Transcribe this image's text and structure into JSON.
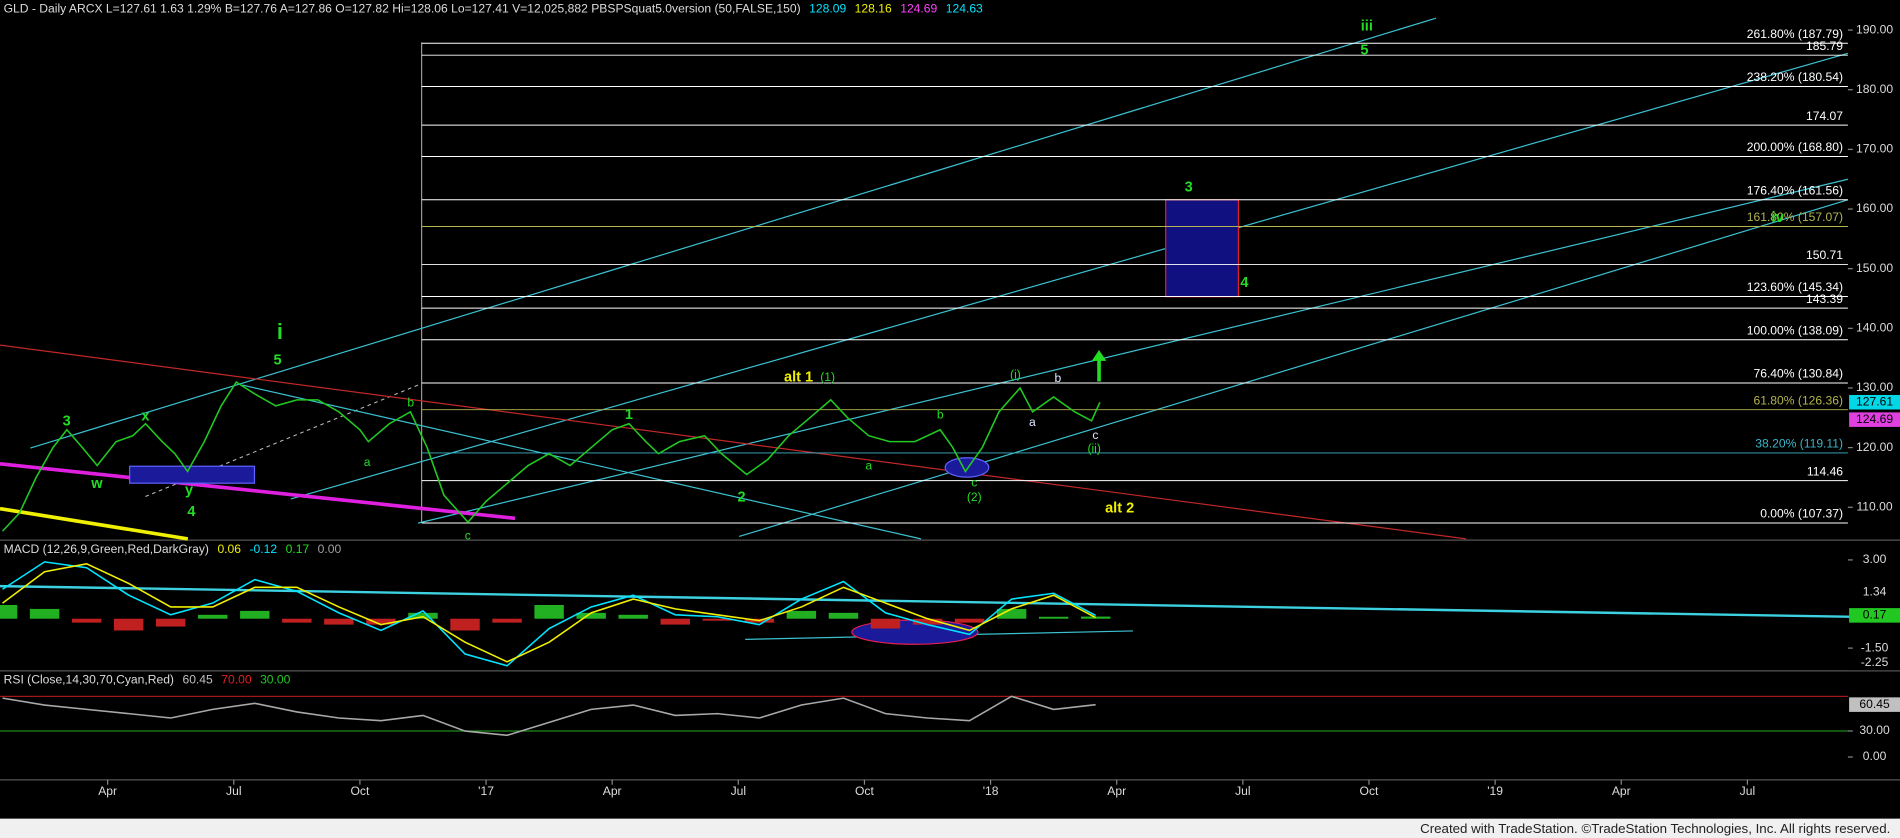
{
  "header": {
    "title": "GLD - Daily ARCX L=127.61 1.63 1.29% B=127.76 A=127.86 O=127.82 Hi=128.06 Lo=127.41 V=12,025,882 PBSPSquat5.0version (50,FALSE,150)",
    "values": [
      {
        "text": "128.09",
        "color": "#00e5ff"
      },
      {
        "text": "128.16",
        "color": "#f0f000"
      },
      {
        "text": "124.69",
        "color": "#ff40ff"
      },
      {
        "text": "124.63",
        "color": "#00e5ff"
      }
    ]
  },
  "chart_data": [
    {
      "type": "line",
      "x": [
        0.5,
        0.9,
        1.3,
        1.7,
        2.03,
        2.4,
        2.75,
        3.2,
        3.6,
        3.9,
        4.3,
        4.6,
        4.9,
        5.3,
        5.7,
        6.06,
        6.5,
        7.0,
        7.5,
        8.0,
        8.5,
        9.0,
        9.2,
        9.7,
        10.2,
        10.6,
        11.0,
        11.57,
        12.0,
        12.5,
        13.0,
        13.5,
        14.0,
        14.5,
        15.0,
        15.4,
        15.8,
        16.1,
        16.6,
        17.2,
        17.6,
        18.2,
        18.7,
        19.2,
        19.7,
        20.2,
        20.6,
        21.1,
        21.6,
        22.2,
        22.8,
        23.1,
        23.4,
        23.8,
        24.2,
        24.7,
        25.0,
        25.5,
        26.0,
        26.4,
        26.6
      ],
      "series": [
        {
          "color": "#22c822",
          "values": [
            106,
            109,
            115,
            120,
            123,
            120,
            117,
            121,
            122,
            124,
            121,
            119,
            116,
            121,
            127,
            131,
            129,
            127,
            128,
            128,
            126,
            123,
            121,
            124,
            126,
            120,
            112,
            107.5,
            111,
            114,
            117,
            119,
            117,
            120,
            123,
            124,
            121,
            119,
            121,
            122,
            119,
            115.5,
            118,
            122,
            125,
            128,
            125,
            122,
            121,
            121,
            123,
            120,
            116,
            120,
            126,
            130,
            126,
            128.5,
            126,
            124.5,
            127.61
          ]
        }
      ],
      "xlim": [
        0.44,
        44.39
      ],
      "xticks": [
        {
          "value": 3,
          "label": "Apr"
        },
        {
          "value": 6,
          "label": "Jul"
        },
        {
          "value": 9,
          "label": "Oct"
        },
        {
          "value": 12,
          "label": "'17"
        },
        {
          "value": 15,
          "label": "Apr"
        },
        {
          "value": 18,
          "label": "Jul"
        },
        {
          "value": 21,
          "label": "Oct"
        },
        {
          "value": 24,
          "label": "'18"
        },
        {
          "value": 27,
          "label": "Apr"
        },
        {
          "value": 30,
          "label": "Jul"
        },
        {
          "value": 33,
          "label": "Oct"
        },
        {
          "value": 36,
          "label": "'19"
        },
        {
          "value": 39,
          "label": "Apr"
        },
        {
          "value": 42,
          "label": "Jul"
        }
      ],
      "ylim": [
        104.7,
        192.2
      ],
      "yticks": [
        {
          "value": 110,
          "label": "110.00"
        },
        {
          "value": 120,
          "label": "120.00"
        },
        {
          "value": 130,
          "label": "130.00"
        },
        {
          "value": 140,
          "label": "140.00"
        },
        {
          "value": 150,
          "label": "150.00"
        },
        {
          "value": 160,
          "label": "160.00"
        },
        {
          "value": 170,
          "label": "170.00"
        },
        {
          "value": 180,
          "label": "180.00"
        },
        {
          "value": 190,
          "label": "190.00"
        }
      ],
      "levels": [
        {
          "label": "261.80% (187.79)",
          "value": 187.79,
          "color": "#ffffff"
        },
        {
          "label": "185.79",
          "value": 185.79,
          "color": "#ffffff"
        },
        {
          "label": "238.20% (180.54)",
          "value": 180.54,
          "color": "#ffffff"
        },
        {
          "label": "174.07",
          "value": 174.07,
          "color": "#ffffff"
        },
        {
          "label": "200.00% (168.80)",
          "value": 168.8,
          "color": "#ffffff"
        },
        {
          "label": "176.40% (161.56)",
          "value": 161.56,
          "color": "#ffffff"
        },
        {
          "label": "161.80% (157.07)",
          "value": 157.07,
          "color": "#b4b450"
        },
        {
          "label": "150.71",
          "value": 150.71,
          "color": "#ffffff"
        },
        {
          "label": "123.60% (145.34)",
          "value": 145.34,
          "color": "#ffffff"
        },
        {
          "label": "143.39",
          "value": 143.39,
          "color": "#ffffff"
        },
        {
          "label": "100.00% (138.09)",
          "value": 138.09,
          "color": "#ffffff"
        },
        {
          "label": "76.40% (130.84)",
          "value": 130.84,
          "color": "#ffffff"
        },
        {
          "label": "61.80% (126.36)",
          "value": 126.36,
          "color": "#b4b450"
        },
        {
          "label": "38.20% (119.11)",
          "value": 119.11,
          "color": "#3cb4c8"
        },
        {
          "label": "114.46",
          "value": 114.46,
          "color": "#ffffff"
        },
        {
          "label": "0.00% (107.37)",
          "value": 107.37,
          "color": "#ffffff"
        }
      ],
      "tags": [
        {
          "value": 127.61,
          "label": "127.61",
          "color": "#00d8e8"
        },
        {
          "value": 124.69,
          "label": "124.69",
          "color": "#e040e0"
        }
      ]
    },
    {
      "type": "line",
      "title": "MACD (12,26,9,Green,Red,DarkGray)",
      "title_values": [
        {
          "text": "0.06",
          "color": "#f0f000"
        },
        {
          "text": "-0.12",
          "color": "#00e5ff"
        },
        {
          "text": "0.17",
          "color": "#22dd22"
        },
        {
          "text": "0.00",
          "color": "#a0a0a0"
        }
      ],
      "x": [
        0.5,
        1.5,
        2.5,
        3.5,
        4.5,
        5.5,
        6.5,
        7.5,
        8.5,
        9.5,
        10.5,
        11.5,
        12.5,
        13.5,
        14.5,
        15.5,
        16.5,
        17.5,
        18.5,
        19.5,
        20.5,
        21.5,
        22.5,
        23.5,
        24.5,
        25.5,
        26.5
      ],
      "series": [
        {
          "type": "bar",
          "color": "#22b022",
          "down_color": "#c02020",
          "values": [
            0.7,
            0.5,
            -0.2,
            -0.6,
            -0.4,
            0.2,
            0.4,
            -0.2,
            -0.3,
            -0.3,
            0.3,
            -0.6,
            -0.2,
            0.7,
            0.3,
            0.2,
            -0.3,
            -0.1,
            -0.2,
            0.4,
            0.3,
            -0.5,
            -0.3,
            -0.2,
            0.5,
            0.1,
            0.11
          ]
        },
        {
          "color": "#00e5ff",
          "values": [
            1.5,
            2.9,
            2.6,
            1.2,
            0.2,
            0.8,
            2.0,
            1.4,
            0.3,
            -0.6,
            0.4,
            -1.8,
            -2.4,
            -0.5,
            0.6,
            1.2,
            0.2,
            0.1,
            -0.3,
            1.0,
            1.9,
            0.3,
            -0.3,
            -0.8,
            1.0,
            1.3,
            0.17
          ]
        },
        {
          "color": "#f0f000",
          "values": [
            0.8,
            2.4,
            2.8,
            1.8,
            0.6,
            0.6,
            1.6,
            1.6,
            0.6,
            -0.3,
            0.1,
            -1.2,
            -2.2,
            -1.2,
            0.3,
            1.0,
            0.5,
            0.2,
            -0.1,
            0.6,
            1.6,
            0.8,
            0.0,
            -0.6,
            0.5,
            1.2,
            0.06
          ]
        }
      ],
      "xlim": [
        0.44,
        44.39
      ],
      "ylim": [
        -2.6,
        3.95
      ],
      "yticks": [
        {
          "value": 3,
          "label": "3.00"
        },
        {
          "value": -1.5,
          "label": "-1.50"
        }
      ],
      "tags": [
        {
          "value": 1.34,
          "label": "1.34",
          "color": "#000000"
        },
        {
          "value": 0.17,
          "label": "0.17",
          "color": "#22c822"
        },
        {
          "value": -2.25,
          "label": "-2.25",
          "color": "#000000"
        }
      ]
    },
    {
      "type": "line",
      "title": "RSI (Close,14,30,70,Cyan,Red)",
      "title_values": [
        {
          "text": "60.45",
          "color": "#c0c0c0"
        },
        {
          "text": "70.00",
          "color": "#e02020"
        },
        {
          "text": "30.00",
          "color": "#22c822"
        }
      ],
      "x": [
        0.5,
        1.5,
        2.5,
        3.5,
        4.5,
        5.5,
        6.5,
        7.5,
        8.5,
        9.5,
        10.5,
        11.5,
        12.5,
        13.5,
        14.5,
        15.5,
        16.5,
        17.5,
        18.5,
        19.5,
        20.5,
        21.5,
        22.5,
        23.5,
        24.5,
        25.5,
        26.5
      ],
      "series": [
        {
          "color": "#a8a8a8",
          "values": [
            68,
            60,
            55,
            50,
            45,
            55,
            62,
            52,
            45,
            42,
            48,
            30,
            25,
            40,
            55,
            60,
            48,
            50,
            45,
            60,
            68,
            50,
            45,
            42,
            70,
            55,
            60.45
          ]
        }
      ],
      "bands": [
        {
          "value": 70,
          "color": "#a01818"
        },
        {
          "value": 30,
          "color": "#1c8a1c"
        }
      ],
      "xlim": [
        0.44,
        44.39
      ],
      "ylim": [
        -25,
        98
      ],
      "yticks": [
        {
          "value": 30,
          "label": "30.00"
        },
        {
          "value": 0,
          "label": "0.00"
        }
      ],
      "tags": [
        {
          "value": 60.45,
          "label": "60.45",
          "color": "#c0c0c0"
        }
      ]
    }
  ],
  "annotations": [
    "iii",
    "5",
    "3",
    "4",
    "iv",
    "i",
    "5",
    "3",
    "x",
    "w",
    "y",
    "4",
    "a",
    "b",
    "c",
    "1",
    "2",
    "alt 1",
    "(1)",
    "a",
    "b",
    "c",
    "(2)",
    "(i)",
    "b",
    "a",
    "c",
    "(ii)",
    "alt 2"
  ],
  "footer": "Created with TradeStation. ©TradeStation Technologies, Inc. All rights reserved."
}
